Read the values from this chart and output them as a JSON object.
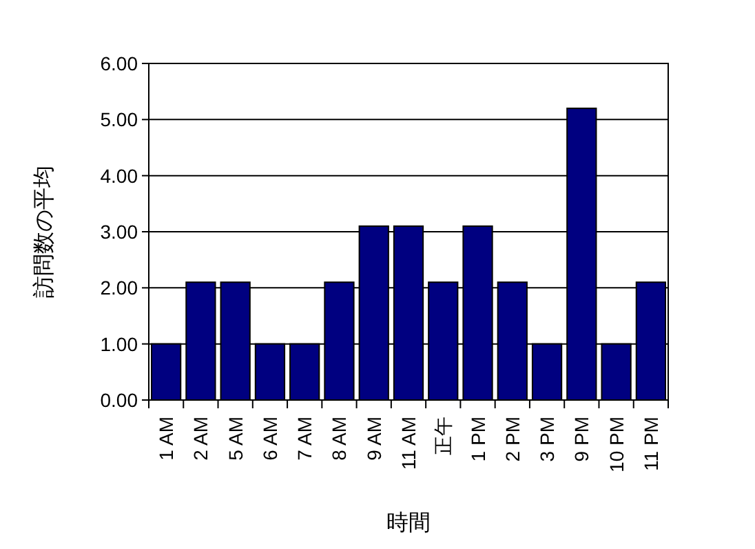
{
  "chart_data": {
    "type": "bar",
    "xlabel": "時間",
    "ylabel": "訪問数の平均",
    "categories": [
      "1 AM",
      "2 AM",
      "5 AM",
      "6 AM",
      "7 AM",
      "8 AM",
      "9 AM",
      "11 AM",
      "正午",
      "1 PM",
      "2 PM",
      "3 PM",
      "9 PM",
      "10 PM",
      "11 PM"
    ],
    "values": [
      1.0,
      2.1,
      2.1,
      1.0,
      1.0,
      2.1,
      3.1,
      3.1,
      2.1,
      3.1,
      2.1,
      1.0,
      5.2,
      1.0,
      2.1
    ],
    "color": "#000080",
    "ylim": [
      0,
      6
    ],
    "yticks": [
      {
        "value": 0,
        "label": "0.00"
      },
      {
        "value": 1,
        "label": "1.00"
      },
      {
        "value": 2,
        "label": "2.00"
      },
      {
        "value": 3,
        "label": "3.00"
      },
      {
        "value": 4,
        "label": "4.00"
      },
      {
        "value": 5,
        "label": "5.00"
      },
      {
        "value": 6,
        "label": "6.00"
      }
    ],
    "grid": "y"
  }
}
